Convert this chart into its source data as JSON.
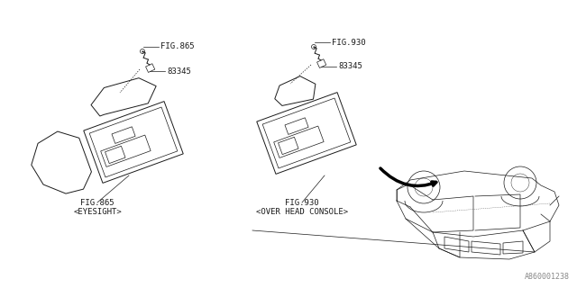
{
  "background_color": "#ffffff",
  "line_color": "#1a1a1a",
  "gray_color": "#888888",
  "part_number": "83345",
  "fig_left_top": "FIG.865",
  "fig_right_top": "FIG.930",
  "fig_left_bottom": "FIG.865",
  "fig_right_bottom": "FIG.930",
  "label_left": "<EYESIGHT>",
  "label_right": "<OVER HEAD CONSOLE>",
  "doc_number": "A860001238",
  "lw": 0.7,
  "tlw": 0.5
}
